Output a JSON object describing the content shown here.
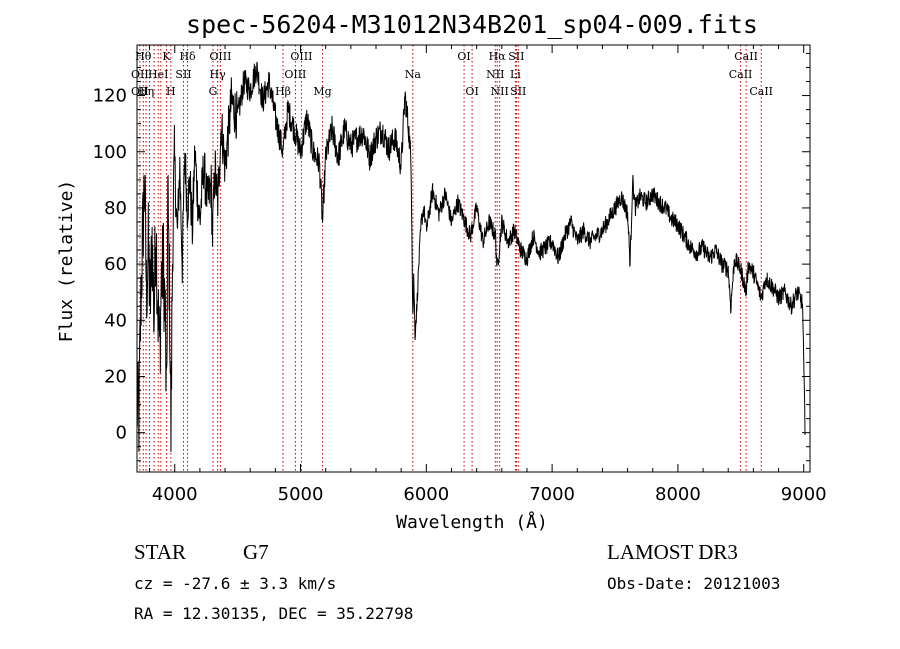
{
  "chart_data": {
    "type": "line",
    "title": "spec-56204-M31012N34B201_sp04-009.fits",
    "xlabel": "Wavelength (Å)",
    "ylabel": "Flux (relative)",
    "xlim": [
      3700,
      9050
    ],
    "ylim": [
      -14,
      138
    ],
    "xticks": [
      4000,
      5000,
      6000,
      7000,
      8000,
      9000
    ],
    "yticks": [
      0,
      20,
      40,
      60,
      80,
      100,
      120
    ],
    "grid": false,
    "series": [
      {
        "color": "#000000",
        "anchors": [
          [
            3700,
            10
          ],
          [
            3715,
            5
          ],
          [
            3730,
            45
          ],
          [
            3745,
            70
          ],
          [
            3760,
            90
          ],
          [
            3775,
            50
          ],
          [
            3790,
            65
          ],
          [
            3805,
            45
          ],
          [
            3820,
            70
          ],
          [
            3835,
            40
          ],
          [
            3850,
            75
          ],
          [
            3865,
            45
          ],
          [
            3880,
            30
          ],
          [
            3895,
            55
          ],
          [
            3910,
            60
          ],
          [
            3925,
            40
          ],
          [
            3935,
            5
          ],
          [
            3945,
            85
          ],
          [
            3960,
            45
          ],
          [
            3970,
            0
          ],
          [
            3985,
            75
          ],
          [
            4000,
            95
          ],
          [
            4020,
            70
          ],
          [
            4040,
            95
          ],
          [
            4060,
            60
          ],
          [
            4080,
            100
          ],
          [
            4100,
            80
          ],
          [
            4120,
            90
          ],
          [
            4140,
            72
          ],
          [
            4160,
            100
          ],
          [
            4180,
            85
          ],
          [
            4200,
            75
          ],
          [
            4230,
            95
          ],
          [
            4260,
            82
          ],
          [
            4290,
            88
          ],
          [
            4300,
            70
          ],
          [
            4320,
            95
          ],
          [
            4340,
            80
          ],
          [
            4370,
            110
          ],
          [
            4400,
            95
          ],
          [
            4450,
            118
          ],
          [
            4500,
            112
          ],
          [
            4550,
            125
          ],
          [
            4600,
            122
          ],
          [
            4650,
            130
          ],
          [
            4700,
            118
          ],
          [
            4750,
            125
          ],
          [
            4800,
            112
          ],
          [
            4860,
            100
          ],
          [
            4900,
            115
          ],
          [
            4950,
            108
          ],
          [
            5000,
            100
          ],
          [
            5050,
            112
          ],
          [
            5100,
            100
          ],
          [
            5150,
            96
          ],
          [
            5175,
            75
          ],
          [
            5200,
            98
          ],
          [
            5250,
            108
          ],
          [
            5300,
            98
          ],
          [
            5350,
            108
          ],
          [
            5400,
            102
          ],
          [
            5450,
            105
          ],
          [
            5500,
            107
          ],
          [
            5550,
            98
          ],
          [
            5600,
            105
          ],
          [
            5650,
            108
          ],
          [
            5700,
            101
          ],
          [
            5750,
            105
          ],
          [
            5800,
            95
          ],
          [
            5830,
            120
          ],
          [
            5860,
            108
          ],
          [
            5880,
            95
          ],
          [
            5893,
            40
          ],
          [
            5900,
            55
          ],
          [
            5910,
            35
          ],
          [
            5925,
            45
          ],
          [
            5940,
            60
          ],
          [
            5960,
            75
          ],
          [
            5980,
            80
          ],
          [
            6000,
            72
          ],
          [
            6050,
            86
          ],
          [
            6100,
            78
          ],
          [
            6150,
            85
          ],
          [
            6200,
            75
          ],
          [
            6250,
            82
          ],
          [
            6300,
            76
          ],
          [
            6350,
            70
          ],
          [
            6400,
            80
          ],
          [
            6450,
            68
          ],
          [
            6500,
            75
          ],
          [
            6550,
            70
          ],
          [
            6563,
            58
          ],
          [
            6600,
            75
          ],
          [
            6650,
            68
          ],
          [
            6700,
            72
          ],
          [
            6750,
            65
          ],
          [
            6800,
            62
          ],
          [
            6850,
            70
          ],
          [
            6900,
            64
          ],
          [
            6950,
            66
          ],
          [
            7000,
            68
          ],
          [
            7050,
            62
          ],
          [
            7100,
            70
          ],
          [
            7150,
            75
          ],
          [
            7200,
            68
          ],
          [
            7250,
            72
          ],
          [
            7300,
            68
          ],
          [
            7350,
            70
          ],
          [
            7400,
            72
          ],
          [
            7450,
            76
          ],
          [
            7500,
            80
          ],
          [
            7550,
            84
          ],
          [
            7600,
            78
          ],
          [
            7620,
            60
          ],
          [
            7640,
            90
          ],
          [
            7660,
            80
          ],
          [
            7700,
            84
          ],
          [
            7750,
            82
          ],
          [
            7800,
            85
          ],
          [
            7850,
            82
          ],
          [
            7900,
            80
          ],
          [
            7950,
            76
          ],
          [
            8000,
            74
          ],
          [
            8050,
            70
          ],
          [
            8100,
            66
          ],
          [
            8150,
            64
          ],
          [
            8200,
            66
          ],
          [
            8250,
            62
          ],
          [
            8300,
            65
          ],
          [
            8350,
            60
          ],
          [
            8400,
            58
          ],
          [
            8420,
            45
          ],
          [
            8450,
            62
          ],
          [
            8500,
            58
          ],
          [
            8542,
            50
          ],
          [
            8560,
            60
          ],
          [
            8600,
            57
          ],
          [
            8662,
            48
          ],
          [
            8700,
            55
          ],
          [
            8750,
            52
          ],
          [
            8800,
            48
          ],
          [
            8850,
            50
          ],
          [
            8900,
            45
          ],
          [
            8950,
            50
          ],
          [
            8990,
            46
          ],
          [
            9000,
            25
          ],
          [
            9010,
            2
          ]
        ]
      }
    ],
    "spectral_lines": [
      {
        "x": 3723,
        "labels": [
          {
            "text": "OII",
            "row": 1
          },
          {
            "text": "OII",
            "row": 2
          }
        ]
      },
      {
        "x": 3750,
        "labels": [
          {
            "text": "Hθ",
            "row": 0
          }
        ]
      },
      {
        "x": 3772,
        "labels": [
          {
            "text": "Hη",
            "row": 2
          }
        ]
      },
      {
        "x": 3799,
        "labels": []
      },
      {
        "x": 3836,
        "labels": []
      },
      {
        "x": 3869,
        "labels": [
          {
            "text": "HeI",
            "row": 1
          }
        ]
      },
      {
        "x": 3889,
        "labels": []
      },
      {
        "x": 3934,
        "labels": [
          {
            "text": "K",
            "row": 0
          }
        ]
      },
      {
        "x": 3969,
        "labels": [
          {
            "text": "H",
            "row": 2
          }
        ]
      },
      {
        "x": 4070,
        "labels": [
          {
            "text": "SII",
            "row": 1
          }
        ]
      },
      {
        "x": 4102,
        "labels": [
          {
            "text": "Hδ",
            "row": 0
          }
        ]
      },
      {
        "x": 4304,
        "labels": [
          {
            "text": "G",
            "row": 2
          }
        ]
      },
      {
        "x": 4341,
        "labels": [
          {
            "text": "Hγ",
            "row": 1
          }
        ]
      },
      {
        "x": 4363,
        "labels": [
          {
            "text": "OIII",
            "row": 0
          }
        ]
      },
      {
        "x": 4861,
        "labels": [
          {
            "text": "Hβ",
            "row": 2
          }
        ]
      },
      {
        "x": 4959,
        "labels": [
          {
            "text": "OIII",
            "row": 1
          }
        ]
      },
      {
        "x": 5007,
        "labels": [
          {
            "text": "OIII",
            "row": 0
          }
        ]
      },
      {
        "x": 5175,
        "labels": [
          {
            "text": "Mg",
            "row": 2
          }
        ]
      },
      {
        "x": 5893,
        "labels": [
          {
            "text": "Na",
            "row": 1
          }
        ]
      },
      {
        "x": 6300,
        "labels": [
          {
            "text": "OI",
            "row": 0
          }
        ]
      },
      {
        "x": 6364,
        "labels": [
          {
            "text": "OI",
            "row": 2
          }
        ]
      },
      {
        "x": 6548,
        "labels": [
          {
            "text": "NII",
            "row": 1
          }
        ]
      },
      {
        "x": 6563,
        "labels": [
          {
            "text": "Hα",
            "row": 0
          }
        ]
      },
      {
        "x": 6583,
        "labels": [
          {
            "text": "NII",
            "row": 2
          }
        ]
      },
      {
        "x": 6708,
        "labels": [
          {
            "text": "Li",
            "row": 1
          }
        ]
      },
      {
        "x": 6716,
        "labels": [
          {
            "text": "SII",
            "row": 0
          }
        ]
      },
      {
        "x": 6731,
        "labels": [
          {
            "text": "SII",
            "row": 2
          }
        ]
      },
      {
        "x": 8498,
        "labels": [
          {
            "text": "CaII",
            "row": 1
          }
        ]
      },
      {
        "x": 8542,
        "labels": [
          {
            "text": "CaII",
            "row": 0
          }
        ]
      },
      {
        "x": 8662,
        "labels": [
          {
            "text": "CaII",
            "row": 2
          }
        ]
      }
    ],
    "line_color": "#c00000"
  },
  "info": {
    "class": "STAR",
    "subclass": "G7",
    "survey": "LAMOST DR3",
    "redshift": "cz = -27.6 ± 3.3 km/s",
    "obs_date": "Obs-Date: 20121003",
    "coords": "RA =  12.30135, DEC =  35.22798"
  }
}
